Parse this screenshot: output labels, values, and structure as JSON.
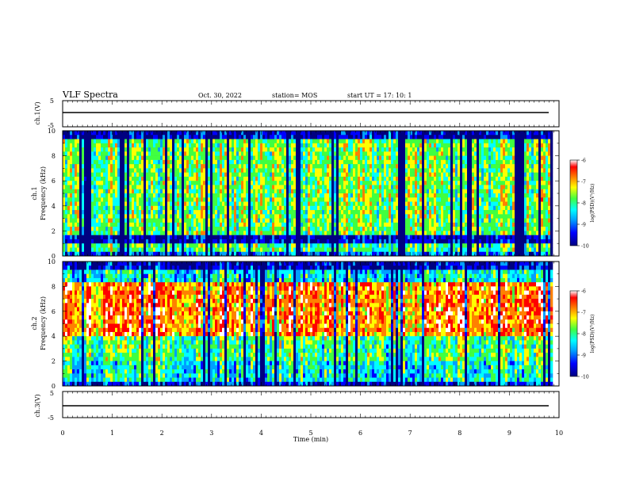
{
  "header": {
    "title": "VLF Spectra",
    "date": "Oct. 30, 2022",
    "station": "station= MOS",
    "start": "start  UT  =   17: 10: 1"
  },
  "chart_data": [
    {
      "type": "line",
      "name": "ch1-waveform",
      "ylabel": "ch.1(V)",
      "ylim": [
        -5,
        5
      ],
      "yticks": [
        "5",
        "-5"
      ],
      "xlim": [
        0,
        10
      ],
      "x": [
        0,
        9.85
      ],
      "y": [
        0,
        0
      ]
    },
    {
      "type": "heatmap",
      "name": "ch1-spectrogram",
      "ylabel_top": "ch.1",
      "ylabel": "Frequency (kHz)",
      "ylim": [
        0,
        10
      ],
      "yticks": [
        "0",
        "2",
        "4",
        "6",
        "8",
        "10"
      ],
      "xlim": [
        0,
        10
      ],
      "data_xmax": 9.85,
      "colorbar": {
        "label": "log(PSD)(V²/Hz)",
        "ticks": [
          "-6",
          "-7",
          "-8",
          "-9",
          "-10"
        ],
        "range": [
          -10,
          -6
        ]
      }
    },
    {
      "type": "heatmap",
      "name": "ch2-spectrogram",
      "ylabel_top": "ch.2",
      "ylabel": "Frequency (kHz)",
      "ylim": [
        0,
        10
      ],
      "yticks": [
        "0",
        "2",
        "4",
        "6",
        "8",
        "10"
      ],
      "xlim": [
        0,
        10
      ],
      "data_xmax": 9.85,
      "colorbar": {
        "label": "log(PSD)(V²/Hz)",
        "ticks": [
          "-6",
          "-7",
          "-8",
          "-9",
          "-10"
        ],
        "range": [
          -10,
          -6
        ]
      }
    },
    {
      "type": "line",
      "name": "ch3-waveform",
      "ylabel": "ch.3(V)",
      "ylim": [
        -5,
        5
      ],
      "yticks": [
        "5",
        "-5"
      ],
      "xlim": [
        0,
        10
      ],
      "x": [
        0,
        9.85
      ],
      "y": [
        0,
        0
      ]
    }
  ],
  "xaxis": {
    "label": "Time (min)",
    "ticks": [
      "0",
      "1",
      "2",
      "3",
      "4",
      "5",
      "6",
      "7",
      "8",
      "9",
      "10"
    ]
  },
  "colors": {
    "colormap": [
      "#000080",
      "#0000ff",
      "#00a0ff",
      "#00ffff",
      "#40ff40",
      "#ffff00",
      "#ff8000",
      "#ff0000",
      "#ffffff"
    ]
  }
}
